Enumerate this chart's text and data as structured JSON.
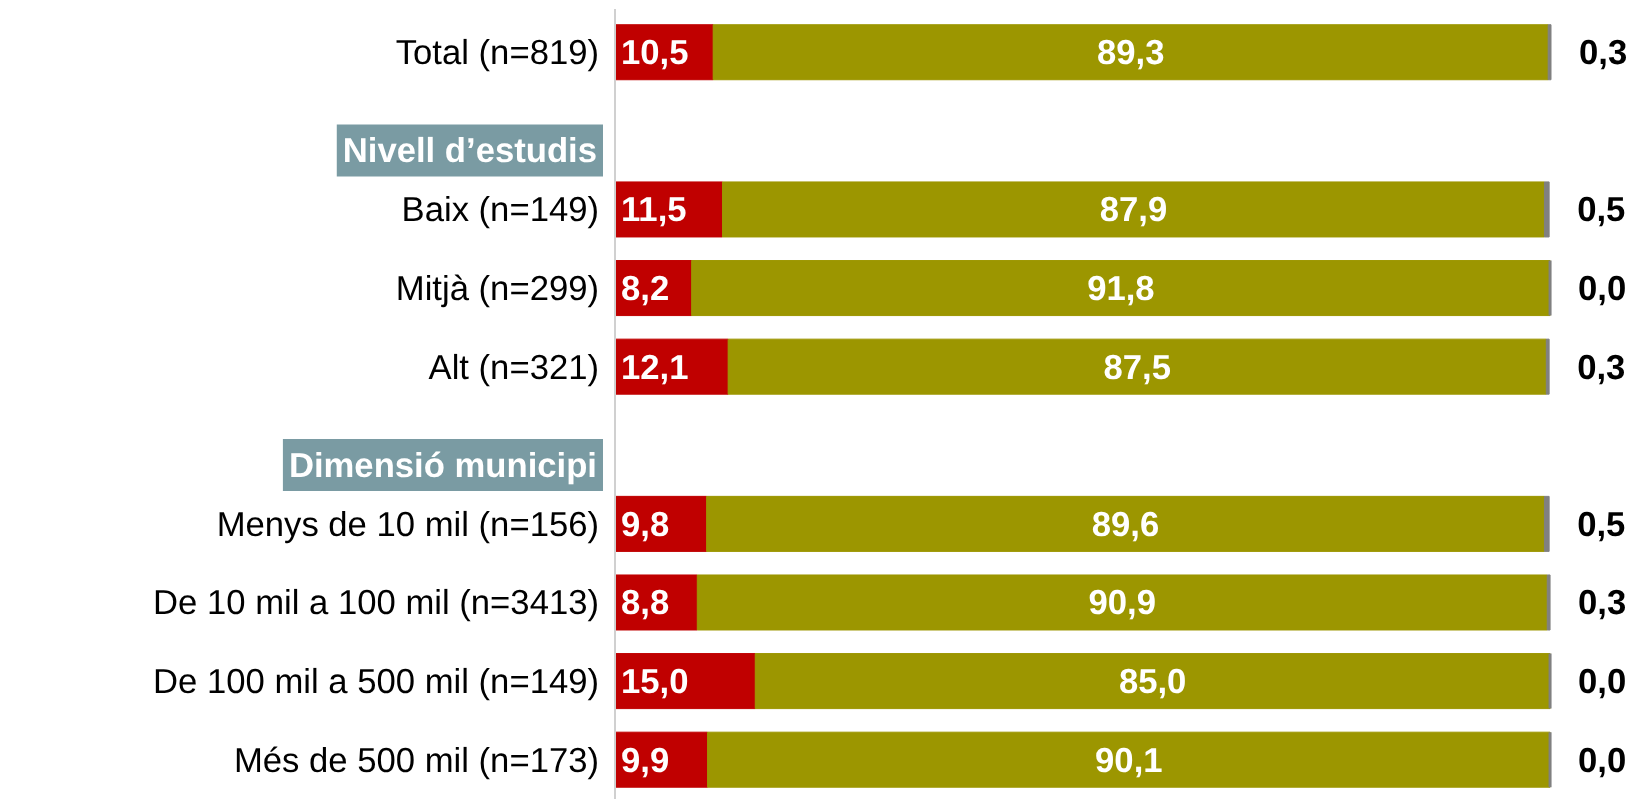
{
  "chart_data": {
    "type": "bar",
    "orientation": "horizontal",
    "stacked": true,
    "tick_labels": "y",
    "grid": false,
    "categories": [
      "Total (n=819)",
      "Nivell d’estudis",
      "Baix (n=149)",
      "Mitjà (n=299)",
      "Alt (n=321)",
      "Dimensió municipi",
      "Menys de 10 mil (n=156)",
      "De 10 mil a 100 mil (n=3413)",
      "De 100 mil a 500 mil (n=149)",
      "Més de 500 mil (n=173)"
    ],
    "series": [
      {
        "color": "#c00000",
        "values": [
          10.5,
          null,
          11.5,
          8.2,
          12.1,
          null,
          9.8,
          8.8,
          15.0,
          9.9
        ],
        "value_labels": [
          "10,5",
          null,
          "11,5",
          "8,2",
          "12,1",
          null,
          "9,8",
          "8,8",
          "15,0",
          "9,9"
        ]
      },
      {
        "color": "#9c9600",
        "values": [
          89.3,
          null,
          87.9,
          91.8,
          87.5,
          null,
          89.6,
          90.9,
          85.0,
          90.1
        ],
        "value_labels": [
          "89,3",
          null,
          "87,9",
          "91,8",
          "87,5",
          null,
          "89,6",
          "90,9",
          "85,0",
          "90,1"
        ]
      },
      {
        "color": "#808080",
        "values": [
          0.3,
          null,
          0.5,
          0.0,
          0.3,
          null,
          0.5,
          0.3,
          0.0,
          0.0
        ],
        "value_labels": [
          "0,3",
          null,
          "0,5",
          "0,0",
          "0,3",
          null,
          "0,5",
          "0,3",
          "0,0",
          "0,0"
        ]
      }
    ]
  }
}
